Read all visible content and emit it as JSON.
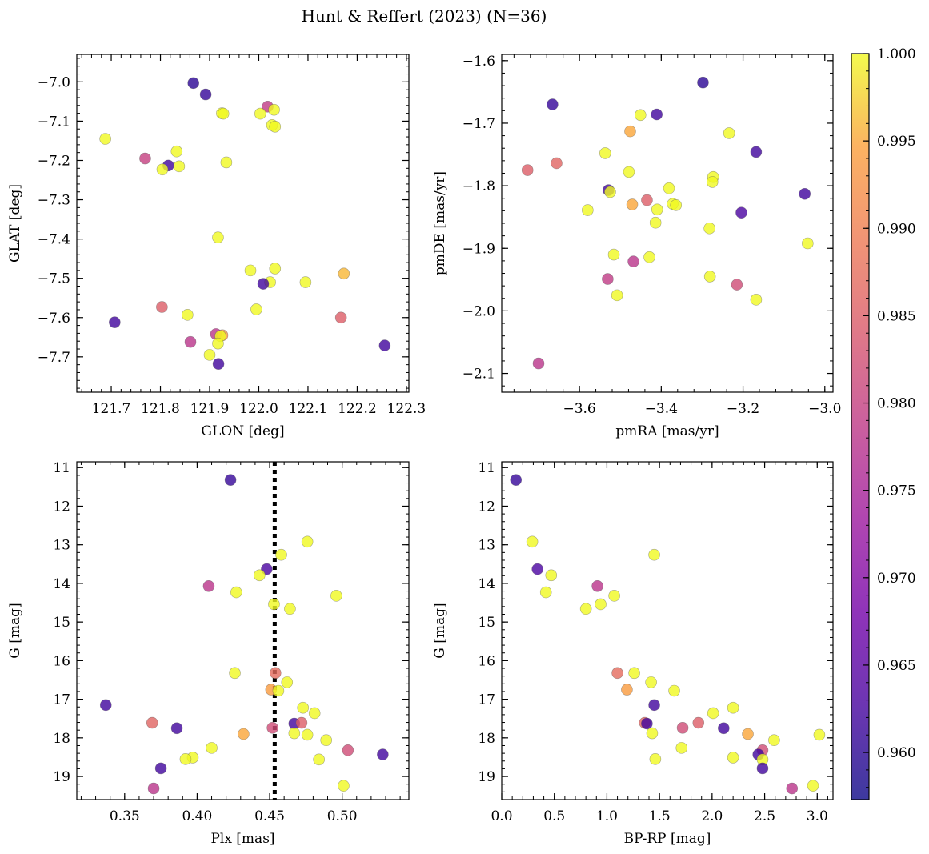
{
  "title": "Hunt & Reffert (2023) (N=36)",
  "colorbar": {
    "min": 0.9573,
    "max": 1.0,
    "ticks": [
      "0.960",
      "0.965",
      "0.970",
      "0.975",
      "0.980",
      "0.985",
      "0.990",
      "0.995",
      "1.000"
    ],
    "tick_values": [
      0.96,
      0.965,
      0.97,
      0.975,
      0.98,
      0.985,
      0.99,
      0.995,
      1.0
    ],
    "colormap": "plasma"
  },
  "chart_data": [
    {
      "type": "scatter",
      "id": "glon-glat",
      "xlabel": "GLON [deg]",
      "ylabel": "GLAT [deg]",
      "xlim": [
        121.63,
        122.305
      ],
      "ylim": [
        -7.79,
        -6.93
      ],
      "y_inverted": false,
      "xticks": [
        121.7,
        121.8,
        121.9,
        122.0,
        122.1,
        122.2,
        122.3
      ],
      "xtick_labels": [
        "121.7",
        "121.8",
        "121.9",
        "122.0",
        "122.1",
        "122.2",
        "122.3"
      ],
      "yticks": [
        -7.0,
        -7.1,
        -7.2,
        -7.3,
        -7.4,
        -7.5,
        -7.6,
        -7.7
      ],
      "ytick_labels": [
        "−7.0",
        "−7.1",
        "−7.2",
        "−7.3",
        "−7.4",
        "−7.5",
        "−7.6",
        "−7.7"
      ],
      "points": [
        {
          "x": 121.867,
          "y": -7.003,
          "c": 0.96
        },
        {
          "x": 121.892,
          "y": -7.032,
          "c": 0.961
        },
        {
          "x": 122.018,
          "y": -7.063,
          "c": 0.979
        },
        {
          "x": 122.031,
          "y": -7.071,
          "c": 1.0
        },
        {
          "x": 121.925,
          "y": -7.08,
          "c": 1.0
        },
        {
          "x": 122.003,
          "y": -7.081,
          "c": 1.0
        },
        {
          "x": 122.027,
          "y": -7.11,
          "c": 1.0
        },
        {
          "x": 122.033,
          "y": -7.114,
          "c": 1.0
        },
        {
          "x": 121.688,
          "y": -7.145,
          "c": 1.0
        },
        {
          "x": 121.833,
          "y": -7.177,
          "c": 1.0
        },
        {
          "x": 121.769,
          "y": -7.195,
          "c": 0.98
        },
        {
          "x": 121.934,
          "y": -7.205,
          "c": 1.0
        },
        {
          "x": 121.816,
          "y": -7.213,
          "c": 0.962
        },
        {
          "x": 121.838,
          "y": -7.215,
          "c": 1.0
        },
        {
          "x": 121.804,
          "y": -7.223,
          "c": 1.0
        },
        {
          "x": 121.917,
          "y": -7.396,
          "c": 1.0
        },
        {
          "x": 122.033,
          "y": -7.475,
          "c": 1.0
        },
        {
          "x": 121.983,
          "y": -7.48,
          "c": 1.0
        },
        {
          "x": 122.173,
          "y": -7.488,
          "c": 0.996
        },
        {
          "x": 122.023,
          "y": -7.51,
          "c": 1.0
        },
        {
          "x": 122.095,
          "y": -7.51,
          "c": 1.0
        },
        {
          "x": 122.009,
          "y": -7.514,
          "c": 0.962
        },
        {
          "x": 121.803,
          "y": -7.573,
          "c": 0.985
        },
        {
          "x": 121.995,
          "y": -7.579,
          "c": 1.0
        },
        {
          "x": 121.855,
          "y": -7.593,
          "c": 1.0
        },
        {
          "x": 122.167,
          "y": -7.6,
          "c": 0.985
        },
        {
          "x": 121.707,
          "y": -7.612,
          "c": 0.962
        },
        {
          "x": 121.913,
          "y": -7.642,
          "c": 0.978
        },
        {
          "x": 121.926,
          "y": -7.645,
          "c": 0.993
        },
        {
          "x": 121.922,
          "y": -7.647,
          "c": 1.0
        },
        {
          "x": 121.861,
          "y": -7.662,
          "c": 0.978
        },
        {
          "x": 121.917,
          "y": -7.666,
          "c": 1.0
        },
        {
          "x": 122.256,
          "y": -7.671,
          "c": 0.962
        },
        {
          "x": 121.9,
          "y": -7.695,
          "c": 1.0
        },
        {
          "x": 121.918,
          "y": -7.718,
          "c": 0.962
        },
        {
          "x": 121.928,
          "y": -7.081,
          "c": 1.0
        }
      ]
    },
    {
      "type": "scatter",
      "id": "pmra-pmde",
      "xlabel": "pmRA [mas/yr]",
      "ylabel": "pmDE [mas/yr]",
      "xlim": [
        -3.79,
        -2.98
      ],
      "ylim": [
        -2.13,
        -1.59
      ],
      "y_inverted": false,
      "xticks": [
        -3.6,
        -3.4,
        -3.2,
        -3.0
      ],
      "xtick_labels": [
        "−3.6",
        "−3.4",
        "−3.2",
        "−3.0"
      ],
      "yticks": [
        -1.6,
        -1.7,
        -1.8,
        -1.9,
        -2.0,
        -2.1
      ],
      "ytick_labels": [
        "−1.6",
        "−1.7",
        "−1.8",
        "−1.9",
        "−2.0",
        "−2.1"
      ],
      "points": [
        {
          "x": -3.298,
          "y": -1.635,
          "c": 0.96
        },
        {
          "x": -3.666,
          "y": -1.67,
          "c": 0.961
        },
        {
          "x": -3.451,
          "y": -1.687,
          "c": 1.0
        },
        {
          "x": -3.411,
          "y": -1.686,
          "c": 0.962
        },
        {
          "x": -3.476,
          "y": -1.713,
          "c": 0.995
        },
        {
          "x": -3.234,
          "y": -1.716,
          "c": 1.0
        },
        {
          "x": -3.168,
          "y": -1.746,
          "c": 0.962
        },
        {
          "x": -3.537,
          "y": -1.748,
          "c": 1.0
        },
        {
          "x": -3.656,
          "y": -1.764,
          "c": 0.986
        },
        {
          "x": -3.727,
          "y": -1.775,
          "c": 0.985
        },
        {
          "x": -3.479,
          "y": -1.778,
          "c": 1.0
        },
        {
          "x": -3.273,
          "y": -1.786,
          "c": 1.0
        },
        {
          "x": -3.275,
          "y": -1.794,
          "c": 1.0
        },
        {
          "x": -3.381,
          "y": -1.804,
          "c": 1.0
        },
        {
          "x": -3.529,
          "y": -1.807,
          "c": 0.962
        },
        {
          "x": -3.525,
          "y": -1.81,
          "c": 1.0
        },
        {
          "x": -3.049,
          "y": -1.813,
          "c": 0.962
        },
        {
          "x": -3.435,
          "y": -1.823,
          "c": 0.985
        },
        {
          "x": -3.372,
          "y": -1.829,
          "c": 1.0
        },
        {
          "x": -3.364,
          "y": -1.831,
          "c": 1.0
        },
        {
          "x": -3.471,
          "y": -1.83,
          "c": 0.995
        },
        {
          "x": -3.58,
          "y": -1.839,
          "c": 1.0
        },
        {
          "x": -3.41,
          "y": -1.838,
          "c": 1.0
        },
        {
          "x": -3.204,
          "y": -1.843,
          "c": 0.963
        },
        {
          "x": -3.414,
          "y": -1.859,
          "c": 1.0
        },
        {
          "x": -3.282,
          "y": -1.868,
          "c": 1.0
        },
        {
          "x": -3.042,
          "y": -1.892,
          "c": 1.0
        },
        {
          "x": -3.516,
          "y": -1.91,
          "c": 1.0
        },
        {
          "x": -3.429,
          "y": -1.914,
          "c": 1.0
        },
        {
          "x": -3.468,
          "y": -1.921,
          "c": 0.978
        },
        {
          "x": -3.281,
          "y": -1.945,
          "c": 1.0
        },
        {
          "x": -3.531,
          "y": -1.949,
          "c": 0.979
        },
        {
          "x": -3.215,
          "y": -1.958,
          "c": 0.982
        },
        {
          "x": -3.508,
          "y": -1.975,
          "c": 1.0
        },
        {
          "x": -3.168,
          "y": -1.982,
          "c": 1.0
        },
        {
          "x": -3.7,
          "y": -2.084,
          "c": 0.978
        }
      ]
    },
    {
      "type": "scatter",
      "id": "plx-g",
      "xlabel": "Plx [mas]",
      "ylabel": "G [mag]",
      "xlim": [
        0.317,
        0.546
      ],
      "ylim": [
        10.85,
        19.6
      ],
      "y_inverted": true,
      "vline": 0.4535,
      "xticks": [
        0.35,
        0.4,
        0.45,
        0.5
      ],
      "xtick_labels": [
        "0.35",
        "0.40",
        "0.45",
        "0.50"
      ],
      "yticks": [
        11,
        12,
        13,
        14,
        15,
        16,
        17,
        18,
        19
      ],
      "ytick_labels": [
        "11",
        "12",
        "13",
        "14",
        "15",
        "16",
        "17",
        "18",
        "19"
      ],
      "points": [
        {
          "x": 0.423,
          "y": 11.32,
          "c": 0.961
        },
        {
          "x": 0.476,
          "y": 12.92,
          "c": 1.0
        },
        {
          "x": 0.458,
          "y": 13.26,
          "c": 1.0
        },
        {
          "x": 0.448,
          "y": 13.63,
          "c": 0.963
        },
        {
          "x": 0.443,
          "y": 13.79,
          "c": 1.0
        },
        {
          "x": 0.408,
          "y": 14.07,
          "c": 0.978
        },
        {
          "x": 0.427,
          "y": 14.23,
          "c": 1.0
        },
        {
          "x": 0.496,
          "y": 14.32,
          "c": 1.0
        },
        {
          "x": 0.453,
          "y": 14.54,
          "c": 1.0
        },
        {
          "x": 0.464,
          "y": 14.66,
          "c": 1.0
        },
        {
          "x": 0.426,
          "y": 16.32,
          "c": 1.0
        },
        {
          "x": 0.454,
          "y": 16.32,
          "c": 0.987
        },
        {
          "x": 0.462,
          "y": 16.56,
          "c": 1.0
        },
        {
          "x": 0.451,
          "y": 16.75,
          "c": 0.994
        },
        {
          "x": 0.456,
          "y": 16.78,
          "c": 1.0
        },
        {
          "x": 0.337,
          "y": 17.15,
          "c": 0.962
        },
        {
          "x": 0.473,
          "y": 17.22,
          "c": 1.0
        },
        {
          "x": 0.481,
          "y": 17.36,
          "c": 1.0
        },
        {
          "x": 0.369,
          "y": 17.61,
          "c": 0.986
        },
        {
          "x": 0.467,
          "y": 17.63,
          "c": 0.962
        },
        {
          "x": 0.472,
          "y": 17.61,
          "c": 0.985
        },
        {
          "x": 0.386,
          "y": 17.75,
          "c": 0.962
        },
        {
          "x": 0.452,
          "y": 17.74,
          "c": 0.982
        },
        {
          "x": 0.467,
          "y": 17.88,
          "c": 1.0
        },
        {
          "x": 0.432,
          "y": 17.9,
          "c": 0.995
        },
        {
          "x": 0.476,
          "y": 17.92,
          "c": 1.0
        },
        {
          "x": 0.489,
          "y": 18.06,
          "c": 1.0
        },
        {
          "x": 0.41,
          "y": 18.26,
          "c": 1.0
        },
        {
          "x": 0.504,
          "y": 18.32,
          "c": 0.982
        },
        {
          "x": 0.528,
          "y": 18.43,
          "c": 0.962
        },
        {
          "x": 0.397,
          "y": 18.51,
          "c": 1.0
        },
        {
          "x": 0.392,
          "y": 18.55,
          "c": 1.0
        },
        {
          "x": 0.484,
          "y": 18.56,
          "c": 1.0
        },
        {
          "x": 0.375,
          "y": 18.79,
          "c": 0.962
        },
        {
          "x": 0.501,
          "y": 19.24,
          "c": 1.0
        },
        {
          "x": 0.37,
          "y": 19.31,
          "c": 0.978
        }
      ]
    },
    {
      "type": "scatter",
      "id": "bprp-g",
      "xlabel": "BP-RP [mag]",
      "ylabel": "G [mag]",
      "xlim": [
        0.0,
        3.15
      ],
      "ylim": [
        10.85,
        19.6
      ],
      "y_inverted": true,
      "xticks": [
        0.0,
        0.5,
        1.0,
        1.5,
        2.0,
        2.5,
        3.0
      ],
      "xtick_labels": [
        "0.0",
        "0.5",
        "1.0",
        "1.5",
        "2.0",
        "2.5",
        "3.0"
      ],
      "yticks": [
        11,
        12,
        13,
        14,
        15,
        16,
        17,
        18,
        19
      ],
      "ytick_labels": [
        "11",
        "12",
        "13",
        "14",
        "15",
        "16",
        "17",
        "18",
        "19"
      ],
      "points": [
        {
          "x": 0.135,
          "y": 11.32,
          "c": 0.961
        },
        {
          "x": 0.29,
          "y": 12.92,
          "c": 1.0
        },
        {
          "x": 1.45,
          "y": 13.26,
          "c": 1.0
        },
        {
          "x": 0.34,
          "y": 13.63,
          "c": 0.963
        },
        {
          "x": 0.47,
          "y": 13.79,
          "c": 1.0
        },
        {
          "x": 0.91,
          "y": 14.07,
          "c": 0.978
        },
        {
          "x": 0.42,
          "y": 14.23,
          "c": 1.0
        },
        {
          "x": 1.07,
          "y": 14.32,
          "c": 1.0
        },
        {
          "x": 0.94,
          "y": 14.54,
          "c": 1.0
        },
        {
          "x": 0.8,
          "y": 14.66,
          "c": 1.0
        },
        {
          "x": 1.1,
          "y": 16.32,
          "c": 0.987
        },
        {
          "x": 1.26,
          "y": 16.32,
          "c": 1.0
        },
        {
          "x": 1.42,
          "y": 16.56,
          "c": 1.0
        },
        {
          "x": 1.19,
          "y": 16.75,
          "c": 0.994
        },
        {
          "x": 1.64,
          "y": 16.78,
          "c": 1.0
        },
        {
          "x": 1.45,
          "y": 17.15,
          "c": 0.962
        },
        {
          "x": 2.2,
          "y": 17.22,
          "c": 1.0
        },
        {
          "x": 2.01,
          "y": 17.36,
          "c": 1.0
        },
        {
          "x": 1.36,
          "y": 17.61,
          "c": 0.986
        },
        {
          "x": 1.38,
          "y": 17.63,
          "c": 0.962
        },
        {
          "x": 1.87,
          "y": 17.61,
          "c": 0.985
        },
        {
          "x": 2.11,
          "y": 17.75,
          "c": 0.962
        },
        {
          "x": 1.72,
          "y": 17.74,
          "c": 0.982
        },
        {
          "x": 1.43,
          "y": 17.88,
          "c": 1.0
        },
        {
          "x": 2.34,
          "y": 17.9,
          "c": 0.995
        },
        {
          "x": 3.02,
          "y": 17.92,
          "c": 1.0
        },
        {
          "x": 2.59,
          "y": 18.06,
          "c": 1.0
        },
        {
          "x": 1.71,
          "y": 18.26,
          "c": 1.0
        },
        {
          "x": 2.48,
          "y": 18.32,
          "c": 0.982
        },
        {
          "x": 2.44,
          "y": 18.43,
          "c": 0.962
        },
        {
          "x": 2.2,
          "y": 18.51,
          "c": 1.0
        },
        {
          "x": 1.46,
          "y": 18.55,
          "c": 1.0
        },
        {
          "x": 2.48,
          "y": 18.56,
          "c": 1.0
        },
        {
          "x": 2.48,
          "y": 18.79,
          "c": 0.962
        },
        {
          "x": 2.96,
          "y": 19.24,
          "c": 1.0
        },
        {
          "x": 2.76,
          "y": 19.31,
          "c": 0.978
        }
      ]
    }
  ]
}
